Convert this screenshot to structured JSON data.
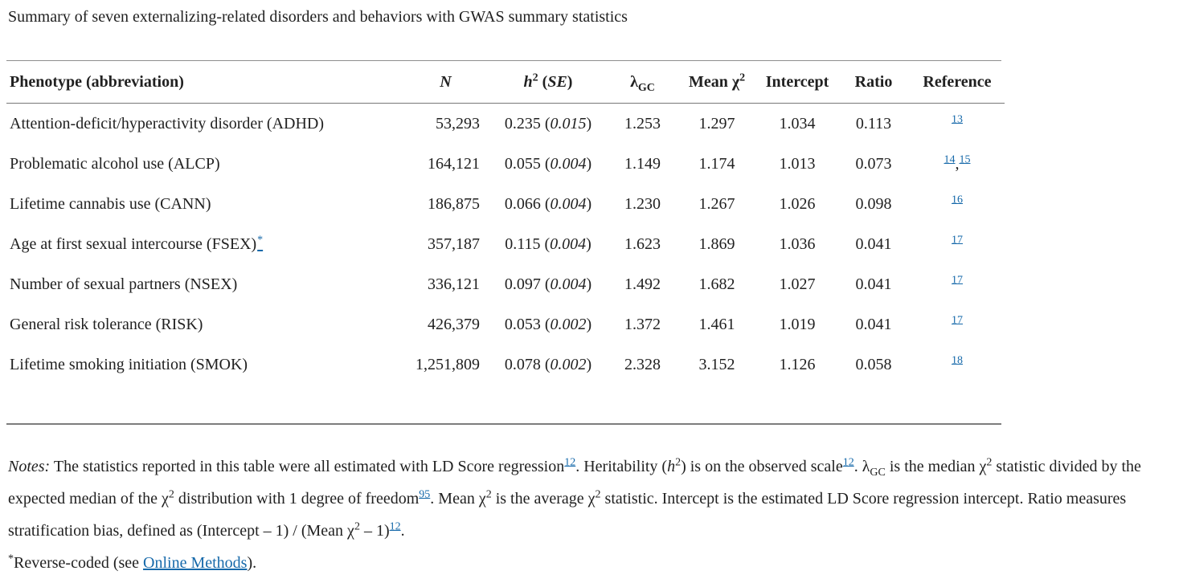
{
  "title": "Summary of seven externalizing-related disorders and behaviors with GWAS summary statistics",
  "table": {
    "headers": {
      "phenotype": [
        {
          "t": "Phenotype (abbreviation)"
        }
      ],
      "n": [
        {
          "i": "N"
        }
      ],
      "h2se": [
        {
          "i": "h"
        },
        {
          "sup": "2"
        },
        {
          "t": " ("
        },
        {
          "i": "SE"
        },
        {
          "t": ")"
        }
      ],
      "lambda": [
        {
          "t": "λ"
        },
        {
          "sub": "GC"
        }
      ],
      "meanchi2": [
        {
          "t": "Mean χ"
        },
        {
          "sup": "2"
        }
      ],
      "intercept": [
        {
          "t": "Intercept"
        }
      ],
      "ratio": [
        {
          "t": "Ratio"
        }
      ],
      "reference": [
        {
          "t": "Reference"
        }
      ]
    },
    "rows": [
      {
        "phenotype": "Attention-deficit/hyperactivity disorder (ADHD)",
        "star": false,
        "n": "53,293",
        "h2": "0.235",
        "se": "0.015",
        "lambda": "1.253",
        "mean_chi2": "1.297",
        "intercept": "1.034",
        "ratio": "0.113",
        "refs": [
          "13"
        ]
      },
      {
        "phenotype": "Problematic alcohol use (ALCP)",
        "star": false,
        "n": "164,121",
        "h2": "0.055",
        "se": "0.004",
        "lambda": "1.149",
        "mean_chi2": "1.174",
        "intercept": "1.013",
        "ratio": "0.073",
        "refs": [
          "14",
          "15"
        ]
      },
      {
        "phenotype": "Lifetime cannabis use (CANN)",
        "star": false,
        "n": "186,875",
        "h2": "0.066",
        "se": "0.004",
        "lambda": "1.230",
        "mean_chi2": "1.267",
        "intercept": "1.026",
        "ratio": "0.098",
        "refs": [
          "16"
        ]
      },
      {
        "phenotype": "Age at first sexual intercourse (FSEX)",
        "star": true,
        "n": "357,187",
        "h2": "0.115",
        "se": "0.004",
        "lambda": "1.623",
        "mean_chi2": "1.869",
        "intercept": "1.036",
        "ratio": "0.041",
        "refs": [
          "17"
        ]
      },
      {
        "phenotype": "Number of sexual partners (NSEX)",
        "star": false,
        "n": "336,121",
        "h2": "0.097",
        "se": "0.004",
        "lambda": "1.492",
        "mean_chi2": "1.682",
        "intercept": "1.027",
        "ratio": "0.041",
        "refs": [
          "17"
        ]
      },
      {
        "phenotype": "General risk tolerance (RISK)",
        "star": false,
        "n": "426,379",
        "h2": "0.053",
        "se": "0.002",
        "lambda": "1.372",
        "mean_chi2": "1.461",
        "intercept": "1.019",
        "ratio": "0.041",
        "refs": [
          "17"
        ]
      },
      {
        "phenotype": "Lifetime smoking initiation (SMOK)",
        "star": false,
        "n": "1,251,809",
        "h2": "0.078",
        "se": "0.002",
        "lambda": "2.328",
        "mean_chi2": "3.152",
        "intercept": "1.126",
        "ratio": "0.058",
        "refs": [
          "18"
        ]
      }
    ],
    "cell_paren_open": " (",
    "cell_paren_close": ")",
    "ref_separator": ","
  },
  "notes": {
    "segments": [
      {
        "i": "Notes:"
      },
      {
        "t": " The statistics reported in this table were all estimated with LD Score regression"
      },
      {
        "ref": "12"
      },
      {
        "t": ". Heritability ("
      },
      {
        "i": "h"
      },
      {
        "sup": "2"
      },
      {
        "t": ") is on the observed scale"
      },
      {
        "ref": "12"
      },
      {
        "t": ". λ"
      },
      {
        "sub": "GC"
      },
      {
        "t": " is the median χ"
      },
      {
        "sup": "2"
      },
      {
        "t": " statistic divided by the expected median of the χ"
      },
      {
        "sup": "2"
      },
      {
        "t": " distribution with 1 degree of freedom"
      },
      {
        "ref": "95"
      },
      {
        "t": ". Mean χ"
      },
      {
        "sup": "2"
      },
      {
        "t": " is the average χ"
      },
      {
        "sup": "2"
      },
      {
        "t": " statistic. Intercept is the estimated LD Score regression intercept. Ratio measures stratification bias, defined as (Intercept – 1) / (Mean χ"
      },
      {
        "sup": "2"
      },
      {
        "t": " – 1)"
      },
      {
        "ref": "12"
      },
      {
        "t": "."
      }
    ]
  },
  "footnote": {
    "star_marker": "*",
    "segments": [
      {
        "supt": "*"
      },
      {
        "t": "Reverse-coded (see "
      },
      {
        "link": "Online Methods"
      },
      {
        "t": ")."
      }
    ]
  },
  "colors": {
    "link_blue": "#1669aa",
    "text": "#212121",
    "rule_gray": "#8e8e8e"
  }
}
